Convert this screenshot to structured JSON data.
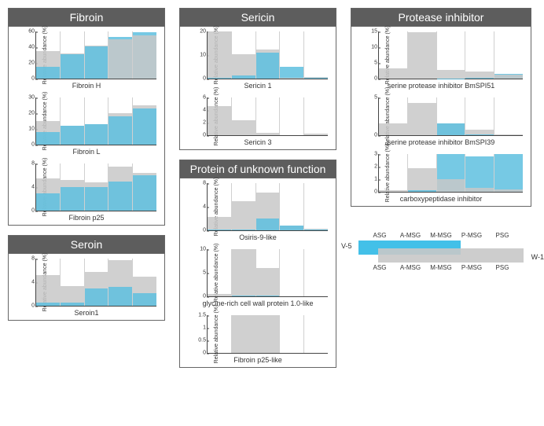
{
  "ylabel": "Relative abundance (%)",
  "categories": [
    "ASG",
    "A-MSG",
    "M-MSG",
    "P-MSG",
    "PSG"
  ],
  "series_labels": {
    "blue": "V-5",
    "grey": "W-1"
  },
  "colors": {
    "grey": "#c8c8c8",
    "blue": "#5ec0df",
    "border": "#444444",
    "header_bg": "#5d5d5d"
  },
  "panels": [
    {
      "id": "fibroin",
      "title": "Fibroin",
      "charts": [
        {
          "id": "fibroin-h",
          "title": "Fibroin H",
          "ymax": 60,
          "yticks": [
            0,
            20,
            40,
            60
          ],
          "grey": [
            35,
            32,
            42,
            50,
            55
          ],
          "blue": [
            15,
            31,
            41,
            53,
            59
          ]
        },
        {
          "id": "fibroin-l",
          "title": "Fibroin L",
          "ymax": 30,
          "yticks": [
            0,
            10,
            20,
            30
          ],
          "grey": [
            15,
            12,
            13,
            20,
            25
          ],
          "blue": [
            8,
            12,
            13,
            18,
            23
          ]
        },
        {
          "id": "fibroin-p25",
          "title": "Fibroin p25",
          "ymax": 8,
          "yticks": [
            0,
            4,
            8
          ],
          "grey": [
            5.5,
            5.2,
            4.8,
            7.5,
            6.4
          ],
          "blue": [
            3,
            4,
            4,
            5,
            6
          ]
        }
      ]
    },
    {
      "id": "seroin",
      "title": "Seroin",
      "charts": [
        {
          "id": "seroin1",
          "title": "Seroin1",
          "ymax": 8,
          "yticks": [
            0,
            4,
            8
          ],
          "grey": [
            5.2,
            3.4,
            5.8,
            7.8,
            5.0
          ],
          "blue": [
            0.6,
            0.6,
            3.0,
            3.2,
            2.2
          ]
        }
      ]
    },
    {
      "id": "sericin",
      "title": "Sericin",
      "charts": [
        {
          "id": "sericin1",
          "title": "Sericin 1",
          "ymax": 20,
          "yticks": [
            0,
            10,
            20
          ],
          "grey": [
            20,
            10.5,
            12.5,
            0.5,
            0.6
          ],
          "blue": [
            0.5,
            1.5,
            11,
            5,
            0.4
          ]
        },
        {
          "id": "sericin3",
          "title": "Sericin 3",
          "ymax": 6,
          "yticks": [
            0,
            2,
            4,
            6
          ],
          "grey": [
            4.6,
            2.4,
            0.4,
            0,
            0.3
          ],
          "blue": [
            0,
            0,
            0,
            0,
            0
          ]
        }
      ]
    },
    {
      "id": "unknown",
      "title": "Protein of unknown function",
      "charts": [
        {
          "id": "osiris9",
          "title": "Osiris-9-like",
          "ymax": 8,
          "yticks": [
            0,
            4,
            8
          ],
          "grey": [
            2.3,
            4.9,
            6.4,
            0.8,
            0.3
          ],
          "blue": [
            0.1,
            0.2,
            2.0,
            0.8,
            0.2
          ]
        },
        {
          "id": "glycine",
          "title": "glycine-rich cell wall protein 1.0-like",
          "ymax": 10,
          "yticks": [
            0,
            5,
            10
          ],
          "grey": [
            0.5,
            10,
            6,
            0,
            0
          ],
          "blue": [
            0,
            0.2,
            0.1,
            0,
            0
          ]
        },
        {
          "id": "p25like",
          "title": "Fibroin p25-like",
          "ymax": 1.5,
          "yticks": [
            0,
            0.5,
            1.0,
            1.5
          ],
          "grey": [
            0,
            1.5,
            1.55,
            0,
            0
          ],
          "blue": [
            0,
            0,
            0,
            0,
            0
          ]
        }
      ]
    },
    {
      "id": "protease",
      "title": "Protease inhibitor",
      "charts": [
        {
          "id": "bmspi51",
          "title": "serine protease inhibitor  BmSPI51",
          "ymax": 15,
          "yticks": [
            0,
            5,
            10,
            15
          ],
          "grey": [
            3.2,
            14.8,
            2.8,
            2.2,
            1.2
          ],
          "blue": [
            0,
            0,
            0.1,
            0.2,
            1.6
          ]
        },
        {
          "id": "bmspi39",
          "title": "serine protease inhibitor BmSPI39",
          "ymax": 5,
          "yticks": [
            0,
            5
          ],
          "grey": [
            1.6,
            4.3,
            1.6,
            0.7,
            0.1
          ],
          "blue": [
            0,
            0,
            1.6,
            0.1,
            0
          ]
        },
        {
          "id": "carboxy",
          "title": "carboxypeptidase inhibitor",
          "ymax": 3,
          "yticks": [
            0,
            1,
            2,
            3
          ],
          "grey": [
            0.1,
            1.9,
            1.0,
            0.3,
            0.2
          ],
          "blue": [
            0,
            0.1,
            3.1,
            2.8,
            3.2
          ]
        }
      ]
    }
  ],
  "layout": {
    "col1": [
      "fibroin",
      "seroin"
    ],
    "col2": [
      "sericin",
      "unknown"
    ],
    "col3": [
      "protease"
    ]
  }
}
